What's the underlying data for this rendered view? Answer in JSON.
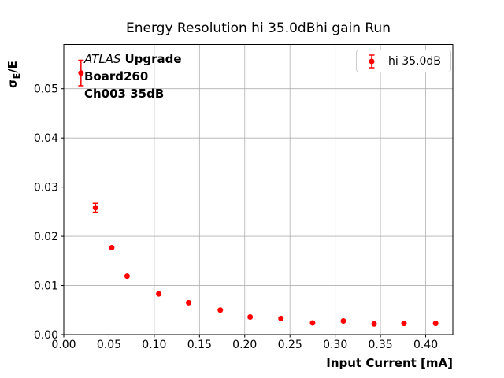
{
  "title": "Energy Resolution hi 35.0dBhi gain Run",
  "xlabel": "Input Current [mA]",
  "ylabel": {
    "base": "σ",
    "sub": "E",
    "suffix": "/E"
  },
  "legend": {
    "label": "hi 35.0dB"
  },
  "annotation": {
    "line1_italic": "ATLAS",
    "line1_bold": "Upgrade",
    "line2": "Board260",
    "line3": "Ch003 35dB"
  },
  "colors": {
    "series": "#ff0000",
    "grid": "#b0b0b0",
    "axis": "#000000",
    "legend_border": "#cccccc",
    "background": "#ffffff"
  },
  "chart_data": {
    "type": "scatter",
    "title": "Energy Resolution hi 35.0dBhi gain Run",
    "xlabel": "Input Current [mA]",
    "ylabel": "σE/E",
    "grid": true,
    "legend_position": "upper right",
    "marker": "circle-with-errorbars",
    "xlim": [
      0.0,
      0.43
    ],
    "ylim": [
      0.0,
      0.059
    ],
    "x_ticks": [
      "0.00",
      "0.05",
      "0.10",
      "0.15",
      "0.20",
      "0.25",
      "0.30",
      "0.35",
      "0.40"
    ],
    "y_ticks": [
      "0.00",
      "0.01",
      "0.02",
      "0.03",
      "0.04",
      "0.05"
    ],
    "series": [
      {
        "name": "hi 35.0dB",
        "color": "#ff0000",
        "x": [
          0.019,
          0.035,
          0.053,
          0.07,
          0.105,
          0.138,
          0.173,
          0.206,
          0.24,
          0.275,
          0.309,
          0.343,
          0.376,
          0.411
        ],
        "y": [
          0.0532,
          0.0258,
          0.0177,
          0.0119,
          0.0083,
          0.0065,
          0.005,
          0.0036,
          0.0033,
          0.0024,
          0.0028,
          0.0022,
          0.0023,
          0.0023
        ],
        "yerr": [
          0.0026,
          0.0009,
          0,
          0,
          0,
          0,
          0,
          0,
          0,
          0,
          0,
          0,
          0,
          0
        ]
      }
    ]
  }
}
